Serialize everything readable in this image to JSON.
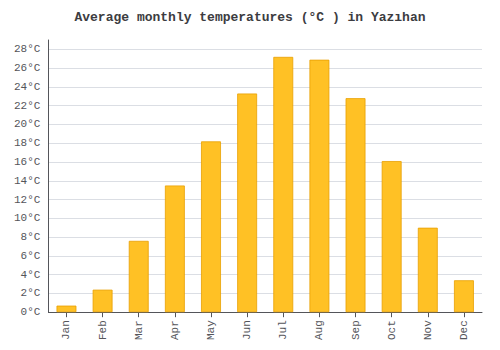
{
  "chart_data": {
    "type": "bar",
    "title": "Average monthly temperatures (°C ) in Yazıhan",
    "categories": [
      "Jan",
      "Feb",
      "Mar",
      "Apr",
      "May",
      "Jun",
      "Jul",
      "Aug",
      "Sep",
      "Oct",
      "Nov",
      "Dec"
    ],
    "values": [
      0.7,
      2.4,
      7.6,
      13.5,
      18.2,
      23.3,
      27.2,
      26.9,
      22.8,
      16.1,
      9.0,
      3.4
    ],
    "color": "#FFC125",
    "ylim": [
      0,
      29
    ],
    "yticks": [
      {
        "value": 0,
        "label": "0°C"
      },
      {
        "value": 2,
        "label": "2°C"
      },
      {
        "value": 4,
        "label": "4°C"
      },
      {
        "value": 6,
        "label": "6°C"
      },
      {
        "value": 8,
        "label": "8°C"
      },
      {
        "value": 10,
        "label": "10°C"
      },
      {
        "value": 12,
        "label": "12°C"
      },
      {
        "value": 14,
        "label": "14°C"
      },
      {
        "value": 16,
        "label": "16°C"
      },
      {
        "value": 18,
        "label": "18°C"
      },
      {
        "value": 20,
        "label": "20°C"
      },
      {
        "value": 22,
        "label": "22°C"
      },
      {
        "value": 24,
        "label": "24°C"
      },
      {
        "value": 26,
        "label": "26°C"
      },
      {
        "value": 28,
        "label": "28°C"
      }
    ],
    "grid": true
  }
}
